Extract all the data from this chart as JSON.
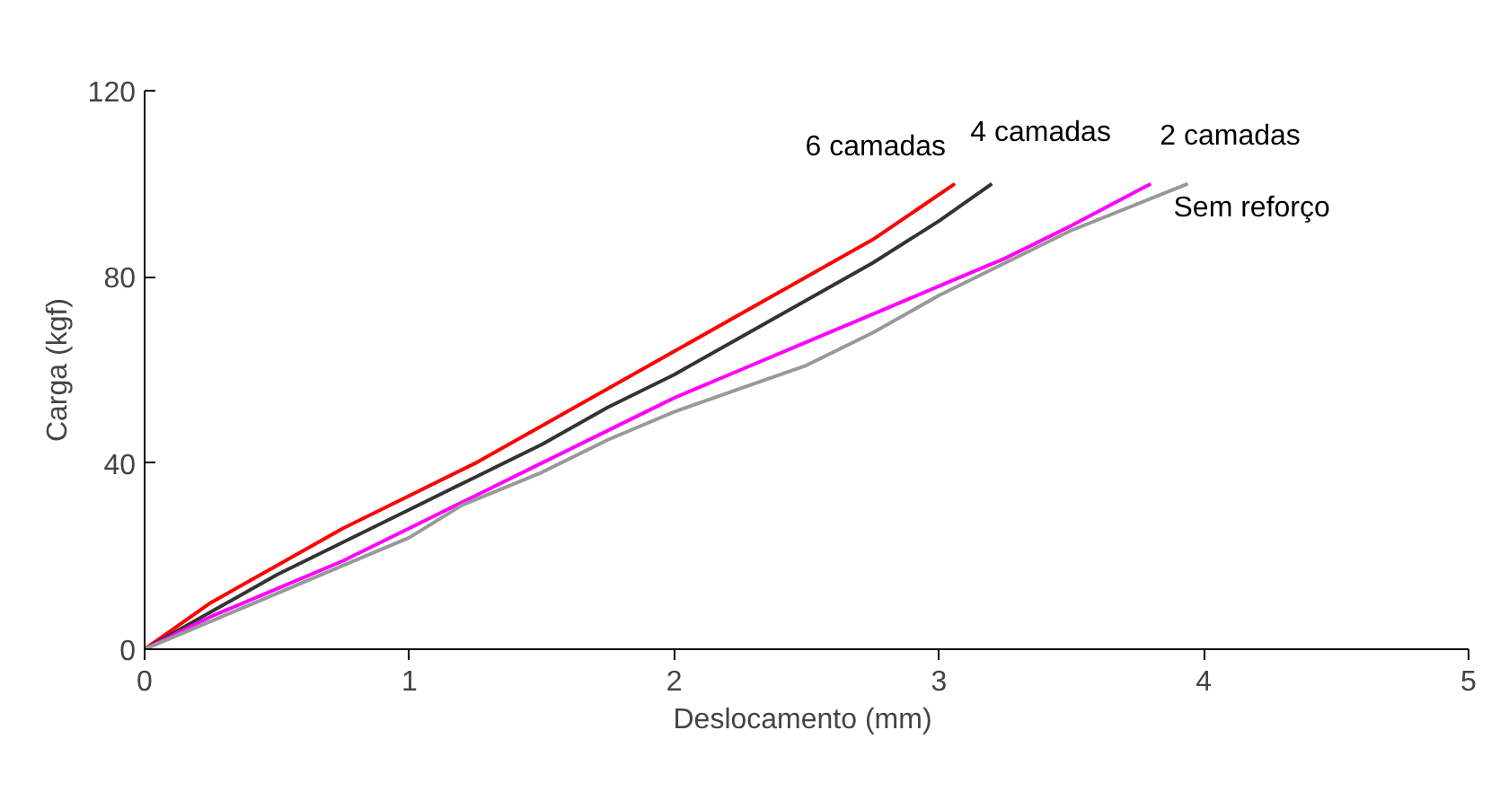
{
  "chart_data": {
    "type": "line",
    "xlabel": "Deslocamento  (mm)",
    "ylabel": "Carga (kgf)",
    "xlim": [
      0,
      5
    ],
    "ylim": [
      0,
      120
    ],
    "xticks": [
      0,
      1,
      2,
      3,
      4,
      5
    ],
    "yticks": [
      0,
      40,
      80,
      120
    ],
    "grid": false,
    "marker": "none",
    "line_style": "solid",
    "series": [
      {
        "name": "6 camadas",
        "color": "#ff0000",
        "x": [
          0,
          0.25,
          0.5,
          0.75,
          1,
          1.25,
          1.5,
          1.75,
          2,
          2.25,
          2.5,
          2.75,
          3.06
        ],
        "values": [
          0,
          10,
          18,
          26,
          33,
          40,
          48,
          56,
          64,
          72,
          80,
          88,
          100
        ]
      },
      {
        "name": "4 camadas",
        "color": "#333333",
        "x": [
          0,
          0.25,
          0.5,
          0.75,
          1,
          1.25,
          1.5,
          1.75,
          2,
          2.25,
          2.5,
          2.75,
          3,
          3.2
        ],
        "values": [
          0,
          8,
          16,
          23,
          30,
          37,
          44,
          52,
          59,
          67,
          75,
          83,
          92,
          100
        ]
      },
      {
        "name": "2 camadas",
        "color": "#ff00ff",
        "x": [
          0,
          0.25,
          0.5,
          0.75,
          1,
          1.25,
          1.5,
          1.75,
          2,
          2.25,
          2.5,
          2.75,
          3,
          3.25,
          3.5,
          3.8
        ],
        "values": [
          0,
          7,
          13,
          19,
          26,
          33,
          40,
          47,
          54,
          60,
          66,
          72,
          78,
          84,
          91,
          100
        ]
      },
      {
        "name": "Sem reforço",
        "color": "#999999",
        "x": [
          0,
          0.25,
          0.5,
          0.75,
          1,
          1.2,
          1.5,
          1.75,
          2,
          2.25,
          2.5,
          2.75,
          3,
          3.25,
          3.5,
          3.94
        ],
        "values": [
          0,
          6,
          12,
          18,
          24,
          31,
          38,
          45,
          51,
          56,
          61,
          68,
          76,
          83,
          90,
          100
        ]
      }
    ]
  }
}
